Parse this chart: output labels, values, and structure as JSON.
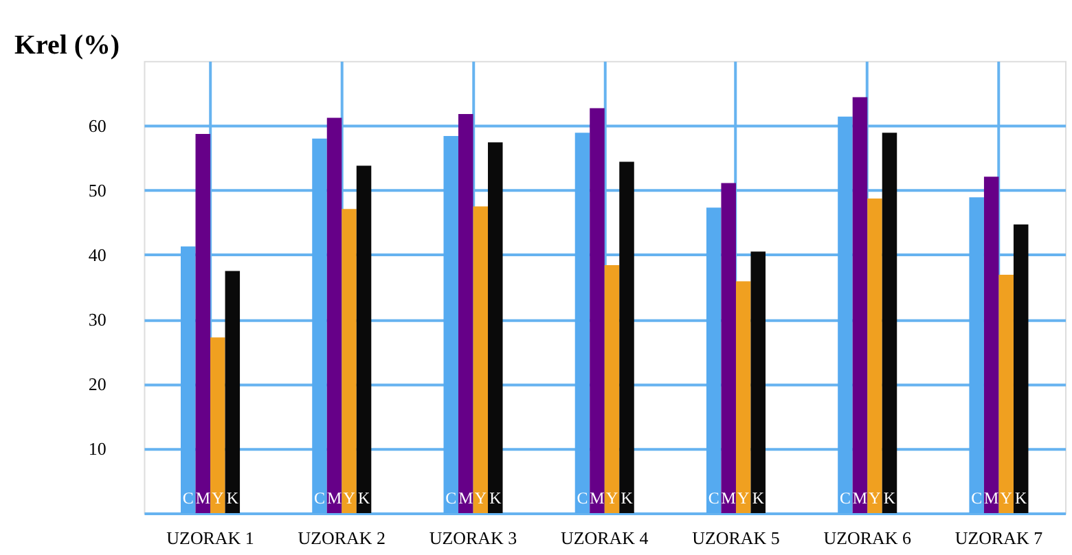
{
  "chart_data": {
    "type": "bar",
    "ylabel": "Krel (%)",
    "categories": [
      "UZORAK 1",
      "UZORAK 2",
      "UZORAK 3",
      "UZORAK 4",
      "UZORAK 5",
      "UZORAK 6",
      "UZORAK 7"
    ],
    "series": [
      {
        "name": "C",
        "color": "#55aaf0",
        "values": [
          41.3,
          58.0,
          58.4,
          58.9,
          47.3,
          61.4,
          48.9
        ]
      },
      {
        "name": "M",
        "color": "#660088",
        "values": [
          58.7,
          61.2,
          61.8,
          62.7,
          51.1,
          64.4,
          52.1
        ]
      },
      {
        "name": "Y",
        "color": "#f0a020",
        "values": [
          27.2,
          47.1,
          47.5,
          38.4,
          35.9,
          48.7,
          36.9
        ]
      },
      {
        "name": "K",
        "color": "#0a0a0a",
        "values": [
          37.5,
          53.8,
          57.4,
          54.4,
          40.5,
          58.9,
          44.7
        ]
      }
    ],
    "ylim": [
      0,
      70
    ],
    "yticks": [
      10,
      20,
      30,
      40,
      50,
      60
    ],
    "grid": true,
    "legend": false
  }
}
